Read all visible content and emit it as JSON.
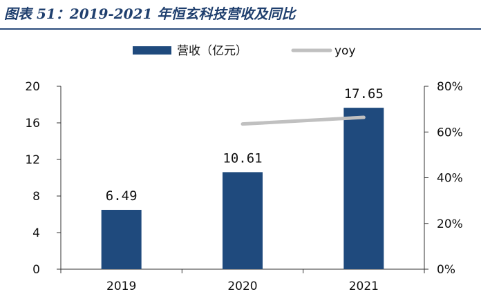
{
  "page": {
    "title": "图表 51：2019-2021 年恒玄科技营收及同比"
  },
  "chart_data": {
    "type": "bar",
    "title": "",
    "categories": [
      "2019",
      "2020",
      "2021"
    ],
    "series": [
      {
        "name": "营收（亿元）",
        "type": "bar",
        "axis": "left",
        "values": [
          6.49,
          10.61,
          17.65
        ],
        "labels": [
          "6.49",
          "10.61",
          "17.65"
        ],
        "color": "#1f4a7d"
      },
      {
        "name": "yoy",
        "type": "line",
        "axis": "right",
        "values": [
          null,
          63.5,
          66.4
        ],
        "color": "#c0c0c0"
      }
    ],
    "y_left": {
      "ylim": [
        0,
        20
      ],
      "ticks": [
        0,
        4,
        8,
        12,
        16,
        20
      ],
      "tick_labels": [
        "0",
        "4",
        "8",
        "12",
        "16",
        "20"
      ]
    },
    "y_right": {
      "ylim": [
        0,
        80
      ],
      "ticks": [
        0,
        20,
        40,
        60,
        80
      ],
      "tick_labels": [
        "0%",
        "20%",
        "40%",
        "60%",
        "80%"
      ]
    },
    "grid": false,
    "legend": {
      "position": "top"
    }
  }
}
